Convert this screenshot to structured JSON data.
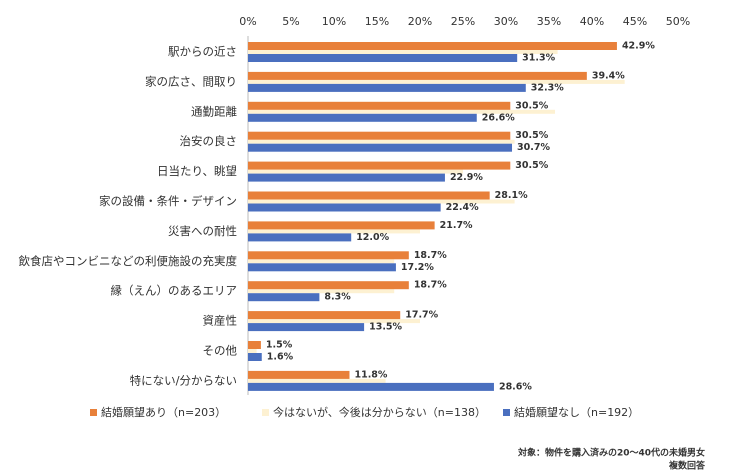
{
  "chart_data": {
    "type": "bar",
    "orientation": "horizontal",
    "categories": [
      "駅からの近さ",
      "家の広さ、間取り",
      "通勤距離",
      "治安の良さ",
      "日当たり、眺望",
      "家の設備・条件・デザイン",
      "災害への耐性",
      "飲食店やコンビニなどの利便施設の充実度",
      "縁（えん）のあるエリア",
      "資産性",
      "その他",
      "特にない/分からない"
    ],
    "series": [
      {
        "name": "結婚願望あり（n=203）",
        "color": "#e8803a",
        "values": [
          42.9,
          39.4,
          30.5,
          30.5,
          30.5,
          28.1,
          21.7,
          18.7,
          18.7,
          17.7,
          1.5,
          11.8
        ],
        "value_labels": [
          "42.9%",
          "39.4%",
          "30.5%",
          "30.5%",
          "30.5%",
          "28.1%",
          "21.7%",
          "18.7%",
          "18.7%",
          "17.7%",
          "1.5%",
          "11.8%"
        ]
      },
      {
        "name": "今はないが、今後は分からない（n=138）",
        "color": "#fdf1d2",
        "values": [
          36,
          43.8,
          35.7,
          31,
          25,
          31,
          20,
          17,
          17,
          20,
          1,
          16
        ]
      },
      {
        "name": "結婚願望なし（n=192）",
        "color": "#4a6fbf",
        "values": [
          31.3,
          32.3,
          26.6,
          30.7,
          22.9,
          22.4,
          12.0,
          17.2,
          8.3,
          13.5,
          1.6,
          28.6
        ],
        "value_labels": [
          "31.3%",
          "32.3%",
          "26.6%",
          "30.7%",
          "22.9%",
          "22.4%",
          "12.0%",
          "17.2%",
          "8.3%",
          "13.5%",
          "1.6%",
          "28.6%"
        ]
      }
    ],
    "xlim": [
      0,
      50
    ],
    "xticks": [
      {
        "value": 0,
        "label": "0%"
      },
      {
        "value": 5,
        "label": "5%"
      },
      {
        "value": 10,
        "label": "10%"
      },
      {
        "value": 15,
        "label": "15%"
      },
      {
        "value": 20,
        "label": "20%"
      },
      {
        "value": 25,
        "label": "25%"
      },
      {
        "value": 30,
        "label": "30%"
      },
      {
        "value": 35,
        "label": "35%"
      },
      {
        "value": 40,
        "label": "40%"
      },
      {
        "value": 45,
        "label": "45%"
      },
      {
        "value": 50,
        "label": "50%"
      }
    ],
    "legend": "bottom",
    "notes": [
      "対象：物件を購入済みの20～40代の未婚男女",
      "複数回答"
    ]
  }
}
